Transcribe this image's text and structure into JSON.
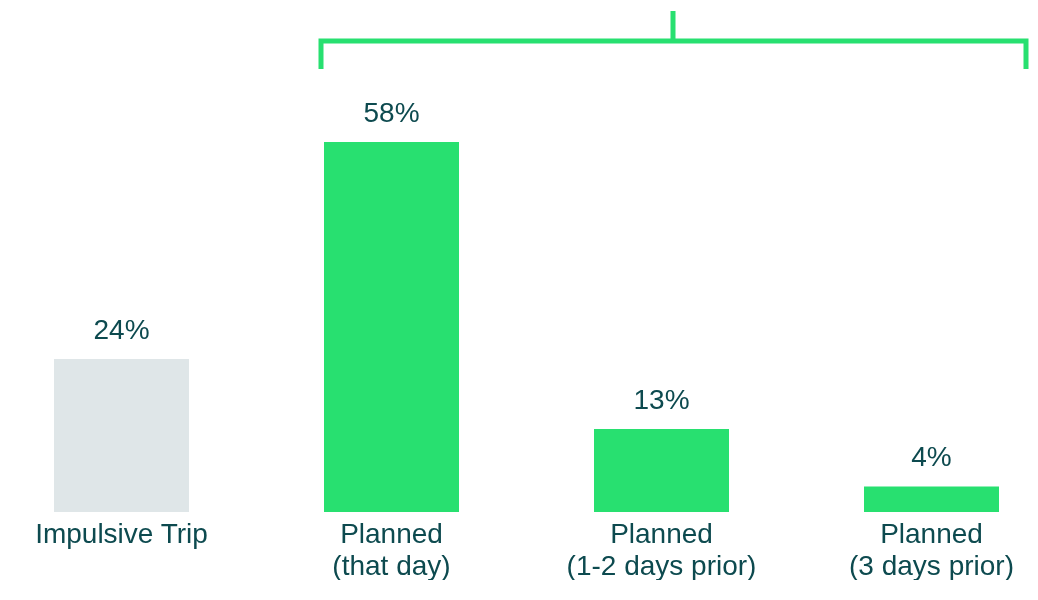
{
  "chart_data": {
    "type": "bar",
    "categories": [
      "Impulsive Trip",
      "Planned\n(that day)",
      "Planned\n(1-2 days prior)",
      "Planned\n(3 days prior)"
    ],
    "values": [
      24,
      58,
      13,
      4
    ],
    "colors": [
      "#dfe6e8",
      "#28e070",
      "#28e070",
      "#28e070"
    ],
    "value_labels": [
      "24%",
      "58%",
      "13%",
      "4%"
    ],
    "grid": false,
    "legend": false
  }
}
